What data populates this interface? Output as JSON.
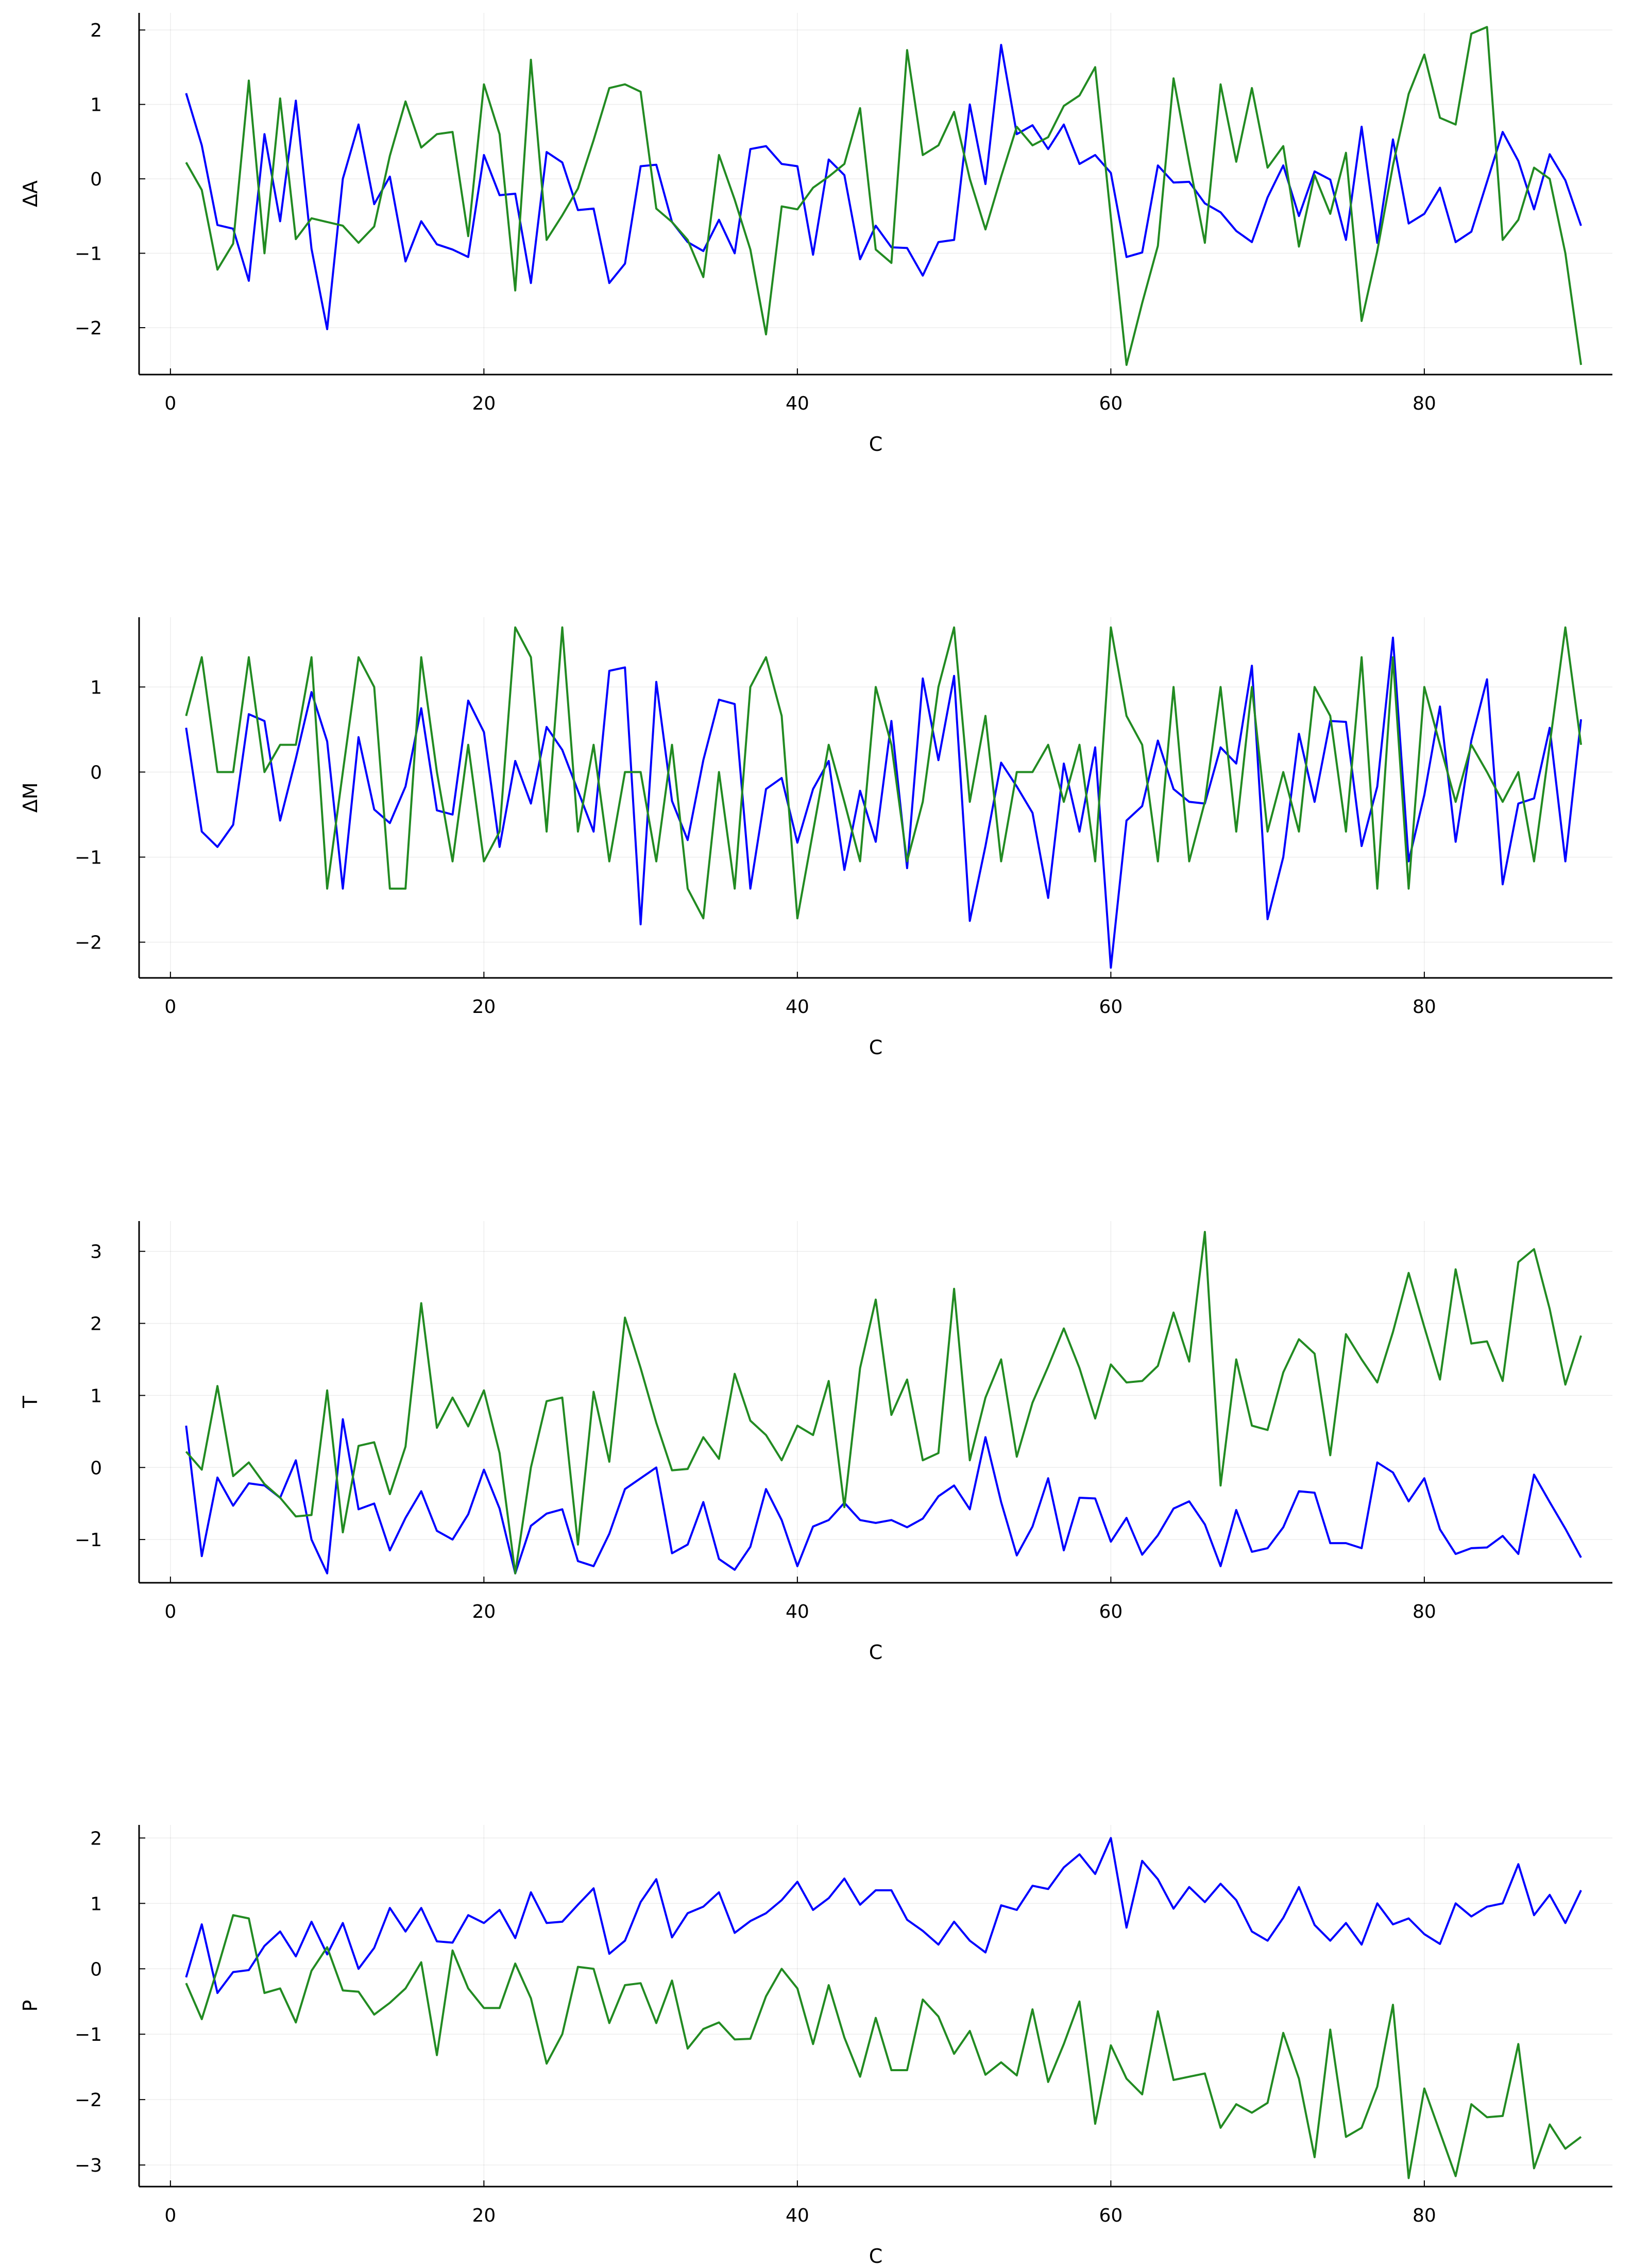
{
  "chart_data": [
    {
      "type": "line",
      "xlabel": "C",
      "ylabel": "ΔA",
      "xlim": [
        -2,
        92
      ],
      "ylim": [
        -2.63,
        2.23
      ],
      "x_ticks": [
        0,
        20,
        40,
        60,
        80
      ],
      "y_ticks": [
        -2,
        -1,
        0,
        1,
        2
      ],
      "grid": true,
      "series": [
        {
          "color": "#0000ff",
          "x_start": 1,
          "values": [
            1.15,
            0.45,
            -0.62,
            -0.67,
            -1.37,
            0.6,
            -0.57,
            1.05,
            -0.94,
            -2.02,
            0.0,
            0.73,
            -0.34,
            0.03,
            -1.11,
            -0.57,
            -0.88,
            -0.95,
            -1.05,
            0.32,
            -0.22,
            -0.2,
            -1.4,
            0.36,
            0.22,
            -0.42,
            -0.4,
            -1.4,
            -1.14,
            0.17,
            0.19,
            -0.58,
            -0.85,
            -0.97,
            -0.55,
            -1.0,
            0.4,
            0.44,
            0.2,
            0.17,
            -1.02,
            0.26,
            0.05,
            -1.08,
            -0.63,
            -0.92,
            -0.93,
            -1.3,
            -0.85,
            -0.82,
            1.0,
            -0.07,
            1.8,
            0.6,
            0.72,
            0.4,
            0.73,
            0.2,
            0.32,
            0.08,
            -1.05,
            -0.99,
            0.18,
            -0.05,
            -0.04,
            -0.33,
            -0.45,
            -0.7,
            -0.85,
            -0.25,
            0.18,
            -0.5,
            0.1,
            -0.01,
            -0.82,
            0.7,
            -0.86,
            0.53,
            -0.6,
            -0.47,
            -0.12,
            -0.85,
            -0.71,
            -0.04,
            0.63,
            0.24,
            -0.41,
            0.33,
            -0.02,
            -0.63
          ]
        },
        {
          "color": "#228b22",
          "x_start": 1,
          "values": [
            0.22,
            -0.15,
            -1.22,
            -0.87,
            1.32,
            -1.0,
            1.08,
            -0.81,
            -0.53,
            -0.58,
            -0.63,
            -0.86,
            -0.64,
            0.31,
            1.04,
            0.42,
            0.6,
            0.63,
            -0.77,
            1.27,
            0.6,
            -1.5,
            1.6,
            -0.82,
            -0.49,
            -0.13,
            0.52,
            1.22,
            1.27,
            1.17,
            -0.4,
            -0.58,
            -0.82,
            -1.32,
            0.32,
            -0.28,
            -0.95,
            -2.09,
            -0.37,
            -0.41,
            -0.12,
            0.03,
            0.2,
            0.95,
            -0.95,
            -1.13,
            1.73,
            0.32,
            0.45,
            0.9,
            0.0,
            -0.68,
            0.03,
            0.7,
            0.45,
            0.56,
            0.98,
            1.12,
            1.5,
            -0.52,
            -2.5,
            -1.67,
            -0.9,
            1.35,
            0.22,
            -0.86,
            1.27,
            0.23,
            1.22,
            0.15,
            0.44,
            -0.91,
            0.05,
            -0.47,
            0.35,
            -1.91,
            -0.97,
            0.18,
            1.14,
            1.67,
            0.82,
            0.73,
            1.95,
            2.04,
            -0.82,
            -0.55,
            0.15,
            0.0,
            -1.0,
            -2.5
          ]
        }
      ]
    },
    {
      "type": "line",
      "xlabel": "C",
      "ylabel": "ΔM",
      "xlim": [
        -2,
        92
      ],
      "ylim": [
        -2.42,
        1.82
      ],
      "x_ticks": [
        0,
        20,
        40,
        60,
        80
      ],
      "y_ticks": [
        -2,
        -1,
        0,
        1
      ],
      "grid": true,
      "series": [
        {
          "color": "#0000ff",
          "x_start": 1,
          "values": [
            0.52,
            -0.7,
            -0.88,
            -0.62,
            0.68,
            0.6,
            -0.57,
            0.16,
            0.94,
            0.36,
            -1.37,
            0.41,
            -0.44,
            -0.6,
            -0.17,
            0.75,
            -0.45,
            -0.5,
            0.84,
            0.47,
            -0.88,
            0.13,
            -0.37,
            0.53,
            0.26,
            -0.22,
            -0.7,
            1.19,
            1.23,
            -1.79,
            1.06,
            -0.34,
            -0.8,
            0.14,
            0.85,
            0.8,
            -1.37,
            -0.2,
            -0.07,
            -0.83,
            -0.2,
            0.13,
            -1.15,
            -0.22,
            -0.82,
            0.6,
            -1.13,
            1.1,
            0.14,
            1.13,
            -1.75,
            -0.87,
            0.11,
            -0.17,
            -0.48,
            -1.48,
            0.1,
            -0.7,
            0.29,
            -2.3,
            -0.57,
            -0.4,
            0.37,
            -0.2,
            -0.35,
            -0.37,
            0.29,
            0.1,
            1.25,
            -1.73,
            -1.0,
            0.45,
            -0.35,
            0.6,
            0.59,
            -0.87,
            -0.17,
            1.58,
            -1.05,
            -0.27,
            0.77,
            -0.82,
            0.37,
            1.09,
            -1.32,
            -0.37,
            -0.31,
            0.52,
            -1.05,
            0.62
          ]
        },
        {
          "color": "#228b22",
          "x_start": 1,
          "values": [
            0.66,
            1.35,
            0.0,
            0.0,
            1.35,
            0.0,
            0.32,
            0.32,
            1.35,
            -1.37,
            0.0,
            1.35,
            1.0,
            -1.37,
            -1.37,
            1.35,
            0.0,
            -1.05,
            0.32,
            -1.05,
            -0.7,
            1.7,
            1.35,
            -0.7,
            1.7,
            -0.7,
            0.32,
            -1.05,
            0.0,
            0.0,
            -1.05,
            0.32,
            -1.37,
            -1.72,
            0.0,
            -1.37,
            1.0,
            1.35,
            0.66,
            -1.72,
            -0.7,
            0.32,
            -0.35,
            -1.05,
            1.0,
            0.32,
            -1.05,
            -0.35,
            1.0,
            1.7,
            -0.35,
            0.66,
            -1.05,
            0.0,
            0.0,
            0.32,
            -0.35,
            0.32,
            -1.05,
            1.7,
            0.66,
            0.32,
            -1.05,
            1.0,
            -1.05,
            -0.35,
            1.0,
            -0.7,
            1.0,
            -0.7,
            0.0,
            -0.7,
            1.0,
            0.66,
            -0.7,
            1.35,
            -1.37,
            1.35,
            -1.37,
            1.0,
            0.32,
            -0.35,
            0.32,
            0.0,
            -0.35,
            0.0,
            -1.05,
            0.32,
            1.7,
            0.32
          ]
        }
      ]
    },
    {
      "type": "line",
      "xlabel": "C",
      "ylabel": "T",
      "xlim": [
        -2,
        92
      ],
      "ylim": [
        -1.6,
        3.42
      ],
      "x_ticks": [
        0,
        20,
        40,
        60,
        80
      ],
      "y_ticks": [
        -1,
        0,
        1,
        2,
        3
      ],
      "grid": true,
      "series": [
        {
          "color": "#0000ff",
          "x_start": 1,
          "values": [
            0.58,
            -1.23,
            -0.14,
            -0.53,
            -0.22,
            -0.25,
            -0.42,
            0.1,
            -1.0,
            -1.47,
            0.67,
            -0.58,
            -0.5,
            -1.15,
            -0.7,
            -0.33,
            -0.88,
            -1.0,
            -0.65,
            -0.03,
            -0.57,
            -1.47,
            -0.81,
            -0.64,
            -0.58,
            -1.3,
            -1.37,
            -0.92,
            -0.3,
            -0.15,
            0.0,
            -1.19,
            -1.07,
            -0.48,
            -1.27,
            -1.42,
            -1.1,
            -0.3,
            -0.73,
            -1.37,
            -0.82,
            -0.73,
            -0.49,
            -0.73,
            -0.77,
            -0.73,
            -0.83,
            -0.71,
            -0.4,
            -0.25,
            -0.58,
            0.42,
            -0.48,
            -1.22,
            -0.82,
            -0.15,
            -1.15,
            -0.42,
            -0.43,
            -1.03,
            -0.7,
            -1.21,
            -0.94,
            -0.57,
            -0.47,
            -0.79,
            -1.37,
            -0.59,
            -1.17,
            -1.12,
            -0.83,
            -0.33,
            -0.35,
            -1.05,
            -1.05,
            -1.12,
            0.07,
            -0.07,
            -0.47,
            -0.15,
            -0.86,
            -1.2,
            -1.12,
            -1.11,
            -0.95,
            -1.2,
            -0.1,
            -0.48,
            -0.85,
            -1.25
          ]
        },
        {
          "color": "#228b22",
          "x_start": 1,
          "values": [
            0.22,
            -0.03,
            1.13,
            -0.12,
            0.07,
            -0.23,
            -0.42,
            -0.68,
            -0.66,
            1.07,
            -0.9,
            0.3,
            0.35,
            -0.37,
            0.29,
            2.28,
            0.55,
            0.97,
            0.57,
            1.07,
            0.2,
            -1.47,
            0.0,
            0.92,
            0.97,
            -1.07,
            1.05,
            0.08,
            2.08,
            1.38,
            0.62,
            -0.04,
            -0.02,
            0.42,
            0.12,
            1.3,
            0.65,
            0.45,
            0.1,
            0.58,
            0.45,
            1.2,
            -0.55,
            1.38,
            2.33,
            0.73,
            1.22,
            0.1,
            0.2,
            2.48,
            0.1,
            0.97,
            1.5,
            0.15,
            0.9,
            1.4,
            1.93,
            1.38,
            0.68,
            1.43,
            1.18,
            1.2,
            1.41,
            2.15,
            1.47,
            3.27,
            -0.25,
            1.5,
            0.58,
            0.52,
            1.32,
            1.78,
            1.58,
            0.17,
            1.85,
            1.5,
            1.18,
            1.88,
            2.7,
            1.95,
            1.22,
            2.75,
            1.72,
            1.75,
            1.2,
            2.85,
            3.03,
            2.2,
            1.15,
            1.83
          ]
        }
      ]
    },
    {
      "type": "line",
      "xlabel": "C",
      "ylabel": "P",
      "xlim": [
        -2,
        92
      ],
      "ylim": [
        -3.33,
        2.2
      ],
      "x_ticks": [
        0,
        20,
        40,
        60,
        80
      ],
      "y_ticks": [
        -3,
        -2,
        -1,
        0,
        1,
        2
      ],
      "grid": true,
      "series": [
        {
          "color": "#0000ff",
          "x_start": 1,
          "values": [
            -0.13,
            0.68,
            -0.37,
            -0.05,
            -0.02,
            0.35,
            0.57,
            0.19,
            0.72,
            0.22,
            0.7,
            0.0,
            0.32,
            0.93,
            0.57,
            0.93,
            0.42,
            0.4,
            0.82,
            0.7,
            0.9,
            0.47,
            1.17,
            0.7,
            0.72,
            0.98,
            1.23,
            0.23,
            0.43,
            1.02,
            1.37,
            0.48,
            0.85,
            0.95,
            1.17,
            0.55,
            0.73,
            0.85,
            1.05,
            1.33,
            0.9,
            1.08,
            1.38,
            0.98,
            1.2,
            1.2,
            0.75,
            0.58,
            0.37,
            0.72,
            0.43,
            0.25,
            0.97,
            0.9,
            1.27,
            1.22,
            1.55,
            1.75,
            1.45,
            2.0,
            0.63,
            1.65,
            1.37,
            0.92,
            1.25,
            1.02,
            1.3,
            1.05,
            0.57,
            0.43,
            0.78,
            1.25,
            0.67,
            0.43,
            0.7,
            0.37,
            1.0,
            0.68,
            0.77,
            0.53,
            0.38,
            1.0,
            0.8,
            0.95,
            1.0,
            1.6,
            0.82,
            1.13,
            0.7,
            1.2
          ]
        },
        {
          "color": "#228b22",
          "x_start": 1,
          "values": [
            -0.22,
            -0.77,
            0.0,
            0.82,
            0.77,
            -0.37,
            -0.3,
            -0.82,
            -0.03,
            0.33,
            -0.33,
            -0.35,
            -0.7,
            -0.52,
            -0.3,
            0.1,
            -1.32,
            0.28,
            -0.3,
            -0.6,
            -0.6,
            0.08,
            -0.45,
            -1.45,
            -1.0,
            0.03,
            0.0,
            -0.83,
            -0.25,
            -0.22,
            -0.83,
            -0.18,
            -1.22,
            -0.92,
            -0.82,
            -1.08,
            -1.07,
            -0.42,
            0.0,
            -0.3,
            -1.15,
            -0.25,
            -1.05,
            -1.65,
            -0.75,
            -1.55,
            -1.55,
            -0.47,
            -0.73,
            -1.3,
            -0.95,
            -1.62,
            -1.43,
            -1.63,
            -0.62,
            -1.73,
            -1.15,
            -0.5,
            -2.37,
            -1.17,
            -1.68,
            -1.92,
            -0.65,
            -1.7,
            -1.65,
            -1.6,
            -2.43,
            -2.07,
            -2.2,
            -2.05,
            -0.98,
            -1.68,
            -2.88,
            -0.93,
            -2.57,
            -2.43,
            -1.8,
            -0.55,
            -3.2,
            -1.83,
            -2.5,
            -3.17,
            -2.07,
            -2.27,
            -2.25,
            -1.15,
            -3.05,
            -2.38,
            -2.75,
            -2.57
          ]
        }
      ]
    }
  ]
}
